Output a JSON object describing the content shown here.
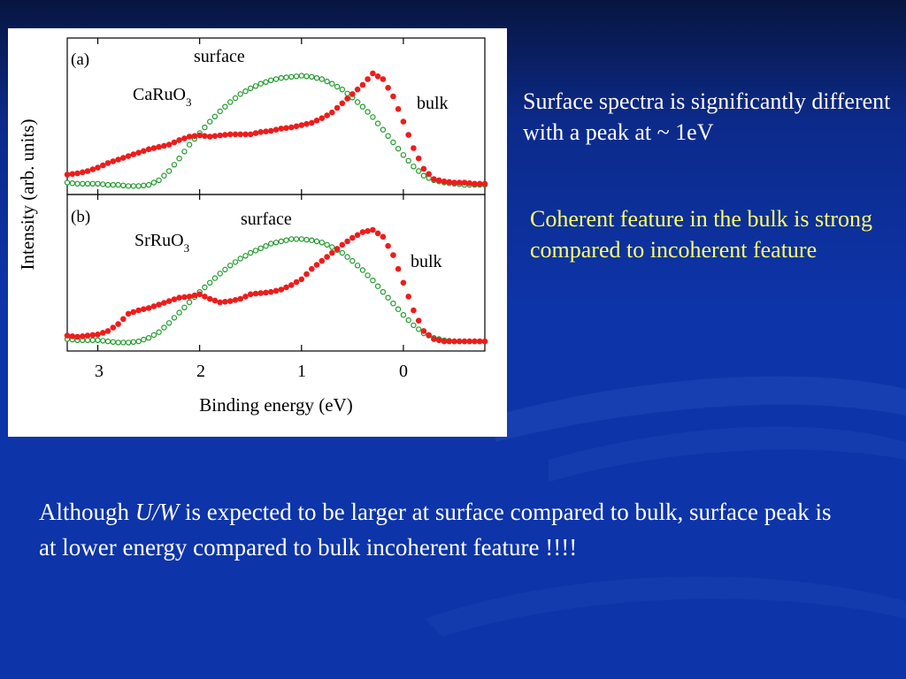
{
  "colors": {
    "background": "#0d34a8",
    "bulk_marker": "#ee1c1c",
    "surface_marker": "#1f9a2a",
    "note_white": "#ffffff",
    "note_yellow": "#ffff66"
  },
  "notes": {
    "note1": "Surface spectra is significantly different with a peak at ~ 1eV",
    "note2": "Coherent feature in the bulk is strong compared to incoherent feature",
    "note3_pre": "Although ",
    "note3_italic": "U/W",
    "note3_post": " is expected to be larger at surface compared to bulk, surface peak is at lower energy compared to bulk incoherent feature !!!!"
  },
  "chart_data": [
    {
      "type": "scatter",
      "panel_label": "(a)",
      "compound_base": "CaRuO",
      "compound_sub": "3",
      "xlabel": "Binding energy (eV)",
      "ylabel": "Intensity (arb. units)",
      "xlim": [
        3.3,
        -0.8
      ],
      "x_reversed": true,
      "xticks": [
        3,
        2,
        1,
        0
      ],
      "ylim": [
        0,
        1
      ],
      "series": [
        {
          "name": "surface",
          "marker": "open-circle",
          "color": "#1f9a2a",
          "x": [
            3.3,
            3.2,
            3.1,
            3.0,
            2.9,
            2.8,
            2.7,
            2.6,
            2.5,
            2.4,
            2.3,
            2.2,
            2.1,
            2.0,
            1.9,
            1.8,
            1.7,
            1.6,
            1.5,
            1.4,
            1.3,
            1.2,
            1.1,
            1.0,
            0.9,
            0.8,
            0.7,
            0.6,
            0.5,
            0.4,
            0.3,
            0.2,
            0.1,
            0.0,
            -0.1,
            -0.2,
            -0.3,
            -0.4,
            -0.5,
            -0.6,
            -0.7,
            -0.8
          ],
          "y": [
            0.05,
            0.04,
            0.04,
            0.04,
            0.03,
            0.03,
            0.02,
            0.02,
            0.03,
            0.07,
            0.15,
            0.26,
            0.38,
            0.48,
            0.58,
            0.67,
            0.75,
            0.82,
            0.87,
            0.91,
            0.94,
            0.96,
            0.97,
            0.98,
            0.97,
            0.95,
            0.91,
            0.86,
            0.79,
            0.71,
            0.62,
            0.51,
            0.4,
            0.29,
            0.19,
            0.11,
            0.07,
            0.05,
            0.04,
            0.03,
            0.03,
            0.03
          ]
        },
        {
          "name": "bulk",
          "marker": "filled-circle",
          "color": "#ee1c1c",
          "x": [
            3.3,
            3.2,
            3.1,
            3.0,
            2.9,
            2.8,
            2.7,
            2.6,
            2.5,
            2.4,
            2.3,
            2.2,
            2.1,
            2.0,
            1.9,
            1.8,
            1.7,
            1.6,
            1.5,
            1.4,
            1.3,
            1.2,
            1.1,
            1.0,
            0.9,
            0.8,
            0.7,
            0.6,
            0.5,
            0.4,
            0.3,
            0.2,
            0.1,
            0.0,
            -0.1,
            -0.2,
            -0.3,
            -0.4,
            -0.5,
            -0.6,
            -0.7,
            -0.8
          ],
          "y": [
            0.12,
            0.13,
            0.15,
            0.18,
            0.22,
            0.25,
            0.28,
            0.31,
            0.34,
            0.36,
            0.38,
            0.42,
            0.45,
            0.46,
            0.45,
            0.46,
            0.47,
            0.47,
            0.47,
            0.49,
            0.5,
            0.52,
            0.53,
            0.55,
            0.57,
            0.61,
            0.66,
            0.74,
            0.82,
            0.9,
            1.0,
            0.95,
            0.8,
            0.58,
            0.35,
            0.17,
            0.08,
            0.06,
            0.05,
            0.05,
            0.04,
            0.04
          ]
        }
      ]
    },
    {
      "type": "scatter",
      "panel_label": "(b)",
      "compound_base": "SrRuO",
      "compound_sub": "3",
      "xlabel": "Binding energy (eV)",
      "ylabel": "Intensity (arb. units)",
      "xlim": [
        3.3,
        -0.8
      ],
      "x_reversed": true,
      "xticks": [
        3,
        2,
        1,
        0
      ],
      "ylim": [
        0,
        1
      ],
      "series": [
        {
          "name": "surface",
          "marker": "open-circle",
          "color": "#1f9a2a",
          "x": [
            3.3,
            3.2,
            3.1,
            3.0,
            2.9,
            2.8,
            2.7,
            2.6,
            2.5,
            2.4,
            2.3,
            2.2,
            2.1,
            2.0,
            1.9,
            1.8,
            1.7,
            1.6,
            1.5,
            1.4,
            1.3,
            1.2,
            1.1,
            1.0,
            0.9,
            0.8,
            0.7,
            0.6,
            0.5,
            0.4,
            0.3,
            0.2,
            0.1,
            0.0,
            -0.1,
            -0.2,
            -0.3,
            -0.4,
            -0.5,
            -0.6,
            -0.7,
            -0.8
          ],
          "y": [
            0.05,
            0.04,
            0.04,
            0.04,
            0.03,
            0.02,
            0.02,
            0.03,
            0.06,
            0.11,
            0.19,
            0.28,
            0.37,
            0.46,
            0.54,
            0.62,
            0.69,
            0.75,
            0.8,
            0.84,
            0.88,
            0.9,
            0.92,
            0.92,
            0.91,
            0.89,
            0.85,
            0.8,
            0.73,
            0.65,
            0.56,
            0.46,
            0.36,
            0.26,
            0.17,
            0.1,
            0.06,
            0.04,
            0.03,
            0.03,
            0.03,
            0.03
          ]
        },
        {
          "name": "bulk",
          "marker": "filled-circle",
          "color": "#ee1c1c",
          "x": [
            3.3,
            3.2,
            3.1,
            3.0,
            2.9,
            2.8,
            2.7,
            2.6,
            2.5,
            2.4,
            2.3,
            2.2,
            2.1,
            2.0,
            1.9,
            1.8,
            1.7,
            1.6,
            1.5,
            1.4,
            1.3,
            1.2,
            1.1,
            1.0,
            0.9,
            0.8,
            0.7,
            0.6,
            0.5,
            0.4,
            0.3,
            0.2,
            0.1,
            0.0,
            -0.1,
            -0.2,
            -0.3,
            -0.4,
            -0.5,
            -0.6,
            -0.7,
            -0.8
          ],
          "y": [
            0.08,
            0.07,
            0.08,
            0.09,
            0.12,
            0.18,
            0.27,
            0.3,
            0.32,
            0.35,
            0.38,
            0.41,
            0.42,
            0.44,
            0.4,
            0.37,
            0.38,
            0.4,
            0.44,
            0.45,
            0.46,
            0.48,
            0.52,
            0.57,
            0.66,
            0.73,
            0.8,
            0.87,
            0.93,
            0.98,
            1.0,
            0.94,
            0.78,
            0.54,
            0.3,
            0.12,
            0.05,
            0.03,
            0.03,
            0.03,
            0.03,
            0.03
          ]
        }
      ]
    }
  ]
}
